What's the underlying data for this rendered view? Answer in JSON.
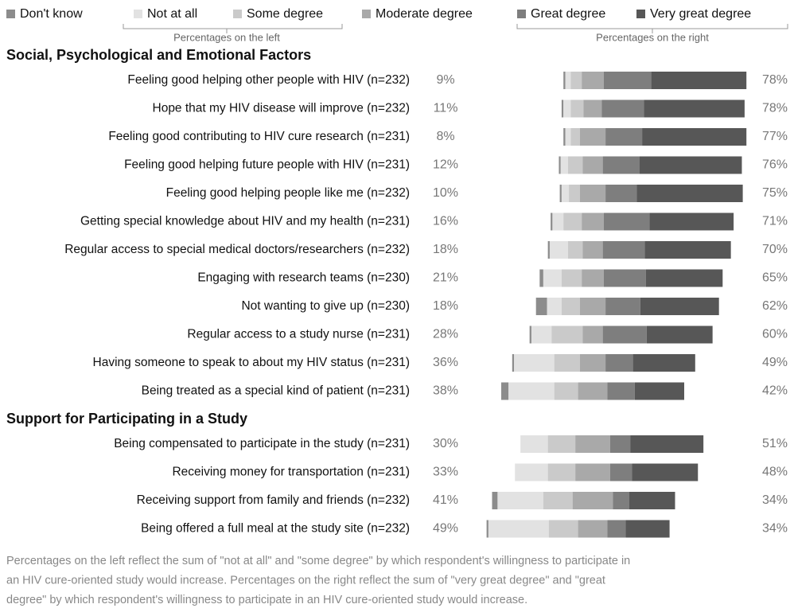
{
  "chart_data": {
    "type": "bar",
    "series": [
      {
        "name": "Don't know",
        "color": "#8c8c8c",
        "values": [
          1,
          1,
          1,
          1,
          1,
          1,
          1,
          2,
          6,
          1,
          1,
          4,
          0,
          0,
          3,
          1
        ]
      },
      {
        "name": "Not at all",
        "color": "#e2e2e2",
        "values": [
          3,
          4,
          3,
          4,
          4,
          6,
          10,
          10,
          8,
          11,
          22,
          25,
          15,
          18,
          25,
          33
        ]
      },
      {
        "name": "Some degree",
        "color": "#cacaca",
        "values": [
          6,
          7,
          5,
          8,
          6,
          10,
          8,
          11,
          10,
          17,
          14,
          13,
          15,
          15,
          16,
          16
        ]
      },
      {
        "name": "Moderate degree",
        "color": "#a9a9a9",
        "values": [
          12,
          10,
          14,
          11,
          14,
          12,
          11,
          12,
          14,
          11,
          14,
          16,
          19,
          19,
          22,
          16
        ]
      },
      {
        "name": "Great degree",
        "color": "#7e7e7e",
        "values": [
          26,
          23,
          20,
          20,
          17,
          25,
          23,
          23,
          19,
          24,
          15,
          15,
          11,
          12,
          9,
          10
        ]
      },
      {
        "name": "Very great degree",
        "color": "#575757",
        "values": [
          52,
          55,
          57,
          56,
          58,
          46,
          47,
          42,
          43,
          36,
          34,
          27,
          40,
          36,
          25,
          24
        ]
      }
    ],
    "left_caption": "Percentages on the left",
    "right_caption": "Percentages on the right",
    "groups": [
      {
        "title": "Social, Psychological and Emotional Factors",
        "categories": [
          "Feeling good helping other people with HIV (n=232)",
          "Hope that my HIV disease will improve (n=232)",
          "Feeling good contributing to HIV cure research (n=231)",
          "Feeling good helping future people with HIV (n=231)",
          "Feeling good helping people like me (n=232)",
          "Getting special knowledge about HIV and my health (n=231)",
          "Regular access to special medical doctors/researchers (n=232)",
          "Engaging with research teams (n=230)",
          "Not wanting to give up (n=230)",
          "Regular access to a study nurse (n=231)",
          "Having someone to speak to about my HIV status (n=231)",
          "Being treated as a special kind of patient (n=231)"
        ],
        "left_labels": [
          "9%",
          "11%",
          "8%",
          "12%",
          "10%",
          "16%",
          "18%",
          "21%",
          "18%",
          "28%",
          "36%",
          "38%"
        ],
        "right_labels": [
          "78%",
          "78%",
          "77%",
          "76%",
          "75%",
          "71%",
          "70%",
          "65%",
          "62%",
          "60%",
          "49%",
          "42%"
        ]
      },
      {
        "title": "Support for Participating in a Study",
        "categories": [
          "Being compensated to participate in the study (n=231)",
          "Receiving money for transportation (n=231)",
          "Receiving support from family and friends (n=232)",
          "Being offered a full meal at the study site (n=232)"
        ],
        "left_labels": [
          "30%",
          "33%",
          "41%",
          "49%"
        ],
        "right_labels": [
          "51%",
          "48%",
          "34%",
          "34%"
        ]
      }
    ],
    "note": [
      "Percentages on the left reflect the sum of \"not at all\" and \"some degree\" by which respondent's willingness to participate in",
      "an HIV cure-oriented study would increase. Percentages on the right reflect the sum of \"very great degree\" and \"great",
      "degree\" by which respondent's willingness to participate in an HIV cure-oriented study would increase."
    ]
  }
}
